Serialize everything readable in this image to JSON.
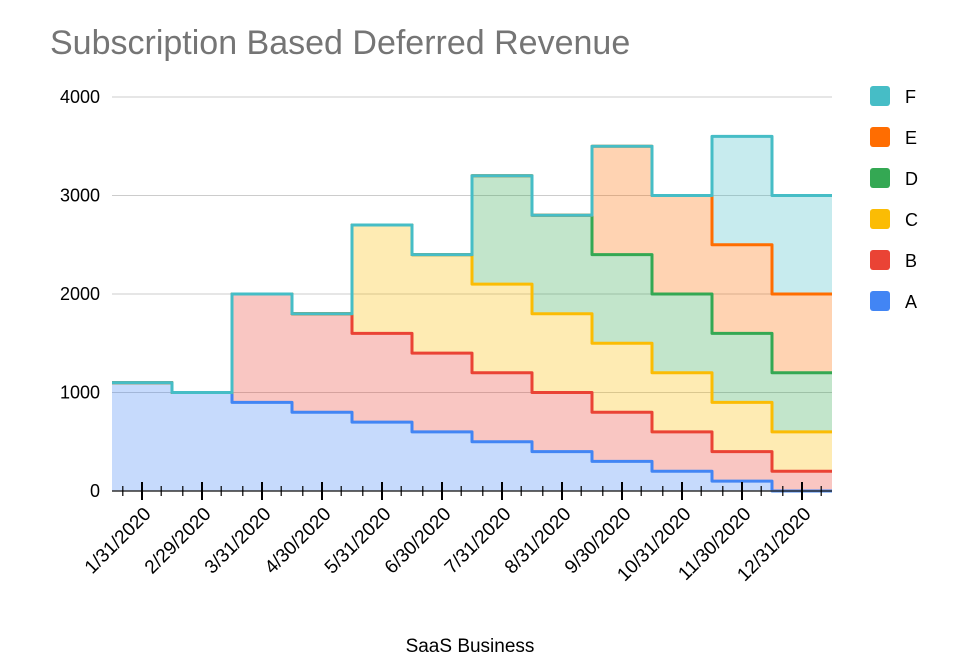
{
  "chart_data": {
    "type": "area",
    "stepped": true,
    "title": "Subscription Based Deferred Revenue",
    "xlabel": "SaaS Business",
    "ylabel": "",
    "ylim": [
      0,
      4000
    ],
    "yticks": [
      0,
      1000,
      2000,
      3000,
      4000
    ],
    "categories": [
      "1/31/2020",
      "2/29/2020",
      "3/31/2020",
      "4/30/2020",
      "5/31/2020",
      "6/30/2020",
      "7/31/2020",
      "8/31/2020",
      "9/30/2020",
      "10/31/2020",
      "11/30/2020",
      "12/31/2020"
    ],
    "legend_position": "right",
    "series": [
      {
        "name": "A",
        "color": "#4285f4",
        "values": [
          1100,
          1000,
          900,
          800,
          700,
          600,
          500,
          400,
          300,
          200,
          100,
          0
        ]
      },
      {
        "name": "B",
        "color": "#ea4335",
        "values": [
          0,
          0,
          1100,
          1000,
          900,
          800,
          700,
          600,
          500,
          400,
          300,
          200
        ]
      },
      {
        "name": "C",
        "color": "#fbbc04",
        "values": [
          0,
          0,
          0,
          0,
          1100,
          1000,
          900,
          800,
          700,
          600,
          500,
          400
        ]
      },
      {
        "name": "D",
        "color": "#34a853",
        "values": [
          0,
          0,
          0,
          0,
          0,
          0,
          1100,
          1000,
          900,
          800,
          700,
          600
        ]
      },
      {
        "name": "E",
        "color": "#ff6d01",
        "values": [
          0,
          0,
          0,
          0,
          0,
          0,
          0,
          0,
          1100,
          1000,
          900,
          800
        ]
      },
      {
        "name": "F",
        "color": "#46bdc6",
        "values": [
          0,
          0,
          0,
          0,
          0,
          0,
          0,
          0,
          0,
          0,
          1100,
          1000
        ]
      }
    ]
  }
}
